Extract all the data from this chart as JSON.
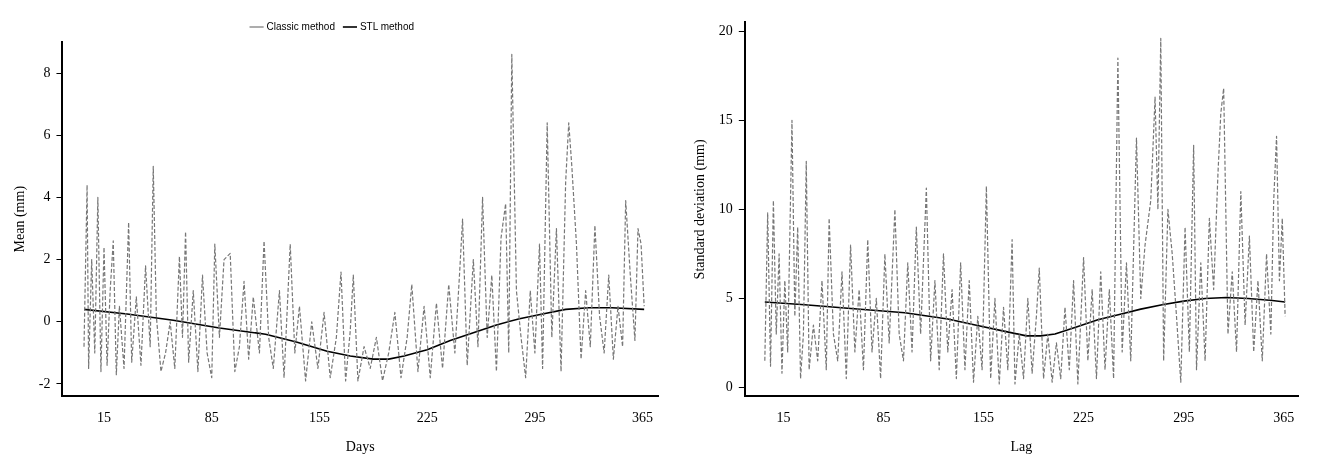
{
  "chart_data": [
    {
      "type": "line",
      "xlabel": "Days",
      "ylabel": "Mean (mm)",
      "xlim": [
        -12,
        375
      ],
      "ylim": [
        -2.4,
        9
      ],
      "xticks": [
        15,
        85,
        155,
        225,
        295,
        365
      ],
      "yticks": [
        -2,
        0,
        2,
        4,
        6,
        8
      ],
      "grid": false,
      "legend": "top",
      "marker": "none",
      "series": [
        {
          "name": "Classic method",
          "color": "#777777",
          "line_style": "dashed",
          "x": [
            2,
            4,
            5,
            7,
            9,
            11,
            13,
            15,
            17,
            19,
            21,
            23,
            25,
            28,
            31,
            33,
            36,
            39,
            42,
            45,
            47,
            49,
            52,
            55,
            58,
            61,
            64,
            66,
            68,
            70,
            73,
            76,
            79,
            82,
            85,
            87,
            90,
            93,
            97,
            100,
            103,
            106,
            109,
            112,
            116,
            119,
            122,
            125,
            129,
            132,
            136,
            139,
            142,
            146,
            150,
            154,
            158,
            162,
            166,
            169,
            172,
            175,
            177,
            180,
            184,
            188,
            192,
            196,
            200,
            204,
            208,
            212,
            215,
            219,
            223,
            227,
            231,
            235,
            239,
            243,
            246,
            248,
            251,
            255,
            258,
            261,
            264,
            267,
            270,
            273,
            276,
            278,
            280,
            283,
            286,
            289,
            292,
            295,
            298,
            300,
            303,
            306,
            309,
            312,
            315,
            317,
            319,
            322,
            325,
            328,
            331,
            334,
            337,
            340,
            343,
            346,
            349,
            352,
            354,
            357,
            360,
            362,
            364,
            366
          ],
          "values": [
            -0.8,
            4.4,
            -1.5,
            2.0,
            -1.0,
            4.0,
            -1.6,
            2.4,
            -1.4,
            1.0,
            2.6,
            -1.7,
            0.5,
            -1.5,
            3.2,
            -1.3,
            0.8,
            -1.4,
            1.8,
            -0.8,
            5.0,
            0.2,
            -1.6,
            -1.0,
            0.0,
            -1.5,
            2.1,
            -0.5,
            2.9,
            -1.3,
            1.0,
            -1.6,
            1.5,
            -1.0,
            -1.8,
            2.5,
            -0.5,
            2.0,
            2.2,
            -1.6,
            -0.8,
            1.3,
            -1.2,
            0.8,
            -1.0,
            2.6,
            -0.5,
            -1.5,
            1.0,
            -1.8,
            2.5,
            -1.0,
            0.5,
            -1.9,
            0.0,
            -1.5,
            0.3,
            -1.8,
            -0.5,
            1.6,
            -1.9,
            -0.3,
            1.5,
            -1.9,
            -0.8,
            -1.5,
            -0.5,
            -1.9,
            -1.0,
            0.3,
            -1.8,
            -0.5,
            1.2,
            -1.6,
            0.5,
            -1.8,
            0.6,
            -1.5,
            1.2,
            -1.0,
            1.5,
            3.3,
            -1.4,
            2.0,
            -0.8,
            4.0,
            -0.5,
            1.5,
            -1.6,
            2.7,
            3.8,
            -1.0,
            8.6,
            1.0,
            -0.5,
            -1.8,
            1.0,
            -1.0,
            2.5,
            -1.5,
            6.4,
            -0.5,
            3.0,
            -1.6,
            4.5,
            6.4,
            5.0,
            2.5,
            -1.2,
            1.0,
            -0.8,
            3.1,
            0.2,
            -1.0,
            1.5,
            -1.2,
            0.5,
            -0.8,
            3.9,
            1.5,
            -0.6,
            3.0,
            2.5,
            0.5
          ]
        },
        {
          "name": "STL method",
          "color": "#000000",
          "line_style": "solid",
          "x": [
            2,
            30,
            60,
            90,
            120,
            140,
            160,
            175,
            190,
            200,
            210,
            225,
            240,
            255,
            270,
            285,
            300,
            315,
            330,
            345,
            366
          ],
          "values": [
            0.4,
            0.25,
            0.05,
            -0.2,
            -0.4,
            -0.65,
            -0.95,
            -1.1,
            -1.2,
            -1.2,
            -1.1,
            -0.9,
            -0.6,
            -0.35,
            -0.1,
            0.1,
            0.25,
            0.4,
            0.45,
            0.45,
            0.4
          ]
        }
      ]
    },
    {
      "type": "line",
      "xlabel": "Lag",
      "ylabel": "Standard deviation (mm)",
      "xlim": [
        -12,
        375
      ],
      "ylim": [
        -0.5,
        20.5
      ],
      "xticks": [
        15,
        85,
        155,
        225,
        295,
        365
      ],
      "yticks": [
        0,
        5,
        10,
        15,
        20
      ],
      "grid": false,
      "legend": false,
      "marker": "none",
      "series": [
        {
          "color": "#777777",
          "line_style": "dashed",
          "x": [
            2,
            4,
            6,
            8,
            10,
            12,
            14,
            16,
            18,
            21,
            23,
            25,
            27,
            29,
            31,
            33,
            36,
            39,
            42,
            45,
            47,
            50,
            53,
            56,
            59,
            62,
            65,
            68,
            71,
            74,
            77,
            80,
            83,
            86,
            89,
            93,
            96,
            99,
            102,
            105,
            108,
            111,
            115,
            118,
            121,
            124,
            127,
            130,
            133,
            136,
            139,
            142,
            145,
            148,
            151,
            154,
            157,
            160,
            163,
            166,
            169,
            172,
            175,
            177,
            180,
            183,
            186,
            189,
            192,
            194,
            197,
            200,
            203,
            206,
            209,
            212,
            215,
            218,
            221,
            225,
            228,
            231,
            234,
            237,
            240,
            243,
            246,
            249,
            252,
            255,
            258,
            262,
            265,
            268,
            272,
            275,
            277,
            279,
            281,
            284,
            287,
            290,
            293,
            296,
            299,
            302,
            304,
            307,
            310,
            313,
            316,
            319,
            321,
            323,
            326,
            329,
            332,
            335,
            338,
            341,
            344,
            347,
            350,
            353,
            356,
            358,
            360,
            362,
            364,
            366
          ],
          "values": [
            1.5,
            9.8,
            1.2,
            10.5,
            3.0,
            7.5,
            0.8,
            6.0,
            2.0,
            15.0,
            4.0,
            9.0,
            0.5,
            3.0,
            12.7,
            1.0,
            3.5,
            1.5,
            6.0,
            1.0,
            9.5,
            3.0,
            1.5,
            6.5,
            0.5,
            8.0,
            2.0,
            5.5,
            1.0,
            8.3,
            2.0,
            5.0,
            0.5,
            7.5,
            2.5,
            10.0,
            3.0,
            1.5,
            7.0,
            2.0,
            9.0,
            3.0,
            11.2,
            1.5,
            6.0,
            1.0,
            7.5,
            2.0,
            5.5,
            0.5,
            7.0,
            1.0,
            6.0,
            0.3,
            4.0,
            1.0,
            11.3,
            0.5,
            5.0,
            0.2,
            4.5,
            1.0,
            8.3,
            0.2,
            3.0,
            0.5,
            5.0,
            0.8,
            4.0,
            6.7,
            0.5,
            3.0,
            0.3,
            2.5,
            0.5,
            4.5,
            1.0,
            6.0,
            0.2,
            7.3,
            1.5,
            5.5,
            0.5,
            6.5,
            1.0,
            5.5,
            0.5,
            18.5,
            2.0,
            7.0,
            1.5,
            14.0,
            5.0,
            8.0,
            10.5,
            16.3,
            10.0,
            19.6,
            1.5,
            10.0,
            7.5,
            4.0,
            0.3,
            9.0,
            2.0,
            13.6,
            1.0,
            7.0,
            1.5,
            9.5,
            5.5,
            12.0,
            15.4,
            16.8,
            3.0,
            6.5,
            2.0,
            11.0,
            3.5,
            8.5,
            2.0,
            6.0,
            1.5,
            7.5,
            3.0,
            10.5,
            14.1,
            6.0,
            9.5,
            4.0
          ]
        },
        {
          "color": "#000000",
          "line_style": "solid",
          "x": [
            2,
            30,
            60,
            100,
            130,
            150,
            170,
            185,
            195,
            205,
            220,
            235,
            250,
            265,
            280,
            295,
            310,
            325,
            340,
            355,
            366
          ],
          "values": [
            4.8,
            4.65,
            4.45,
            4.2,
            3.85,
            3.5,
            3.15,
            2.9,
            2.9,
            3.0,
            3.4,
            3.8,
            4.1,
            4.4,
            4.65,
            4.85,
            5.0,
            5.05,
            5.0,
            4.9,
            4.8
          ]
        }
      ]
    }
  ]
}
